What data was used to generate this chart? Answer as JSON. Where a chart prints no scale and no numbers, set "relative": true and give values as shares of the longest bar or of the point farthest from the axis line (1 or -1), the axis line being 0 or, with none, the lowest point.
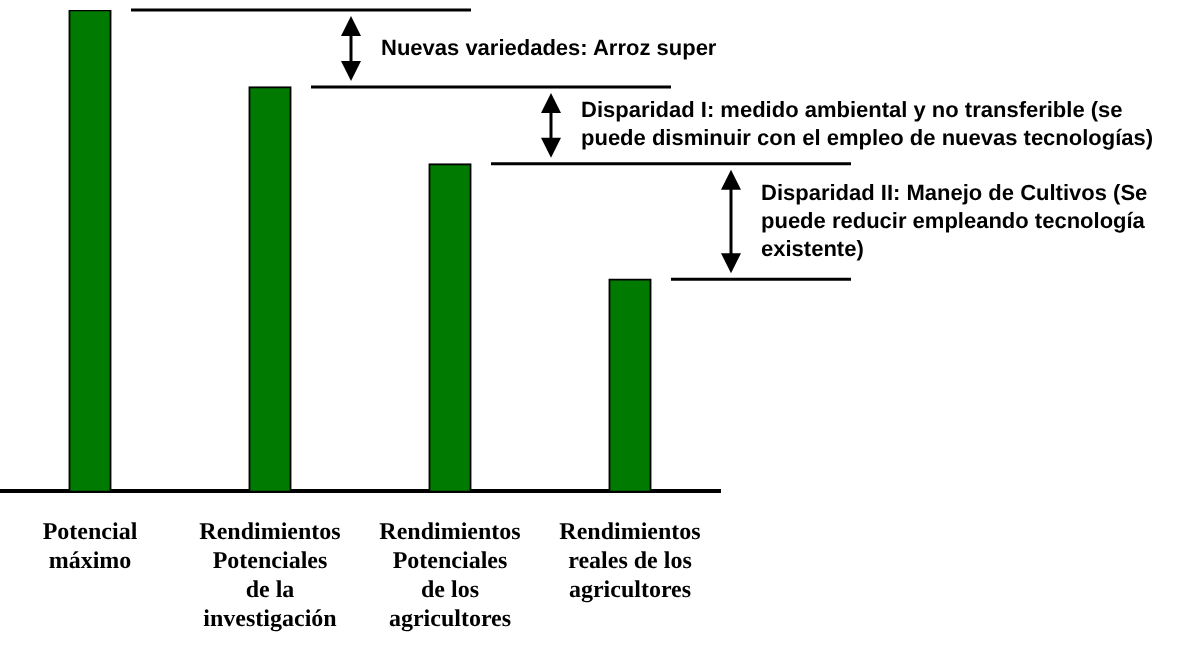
{
  "chart_data": {
    "type": "bar",
    "relative": true,
    "categories": [
      "Potencial máximo",
      "Rendimientos Potenciales de la investigación",
      "Rendimientos Potenciales de los agricultores",
      "Rendimientos reales de los agricultores"
    ],
    "values": [
      1,
      0.84,
      0.68,
      0.44
    ],
    "color": "#007a00",
    "legend": false,
    "annotations": [
      "Nuevas variedades: Arroz super",
      "Disparidad I: medido ambiental y no transferible (se puede disminuir con el empleo de nuevas tecnologías)",
      "Disparidad II: Manejo de Cultivos (Se puede reducir empleando tecnología existente)"
    ]
  }
}
